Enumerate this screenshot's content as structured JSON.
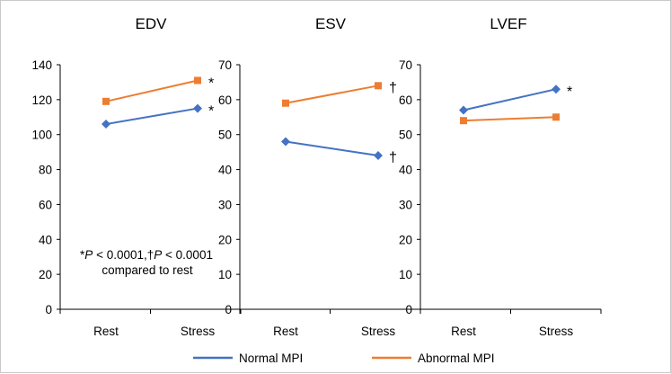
{
  "chart_data": [
    {
      "type": "line",
      "title": "EDV",
      "categories": [
        "Rest",
        "Stress"
      ],
      "ylim": [
        0,
        140
      ],
      "yticks": [
        0,
        20,
        40,
        60,
        80,
        100,
        120,
        140
      ],
      "series": [
        {
          "name": "Normal MPI",
          "values": [
            106,
            115
          ],
          "color": "#4472C4",
          "marker": "diamond"
        },
        {
          "name": "Abnormal MPI",
          "values": [
            119,
            131
          ],
          "color": "#ED7D31",
          "marker": "square"
        }
      ],
      "annotations": [
        {
          "series": "Abnormal MPI",
          "category": "Stress",
          "text": "*"
        },
        {
          "series": "Normal MPI",
          "category": "Stress",
          "text": "*"
        }
      ],
      "note": {
        "prefix": "*",
        "p1": "P",
        "mid": " < 0.0001,",
        "dagger": "†",
        "p2": "P",
        "end": " < 0.0001",
        "line2": "compared to rest"
      }
    },
    {
      "type": "line",
      "title": "ESV",
      "categories": [
        "Rest",
        "Stress"
      ],
      "ylim": [
        0,
        70
      ],
      "yticks": [
        0,
        10,
        20,
        30,
        40,
        50,
        60,
        70
      ],
      "series": [
        {
          "name": "Normal MPI",
          "values": [
            48,
            44
          ],
          "color": "#4472C4",
          "marker": "diamond"
        },
        {
          "name": "Abnormal MPI",
          "values": [
            59,
            64
          ],
          "color": "#ED7D31",
          "marker": "square"
        }
      ],
      "annotations": [
        {
          "series": "Abnormal MPI",
          "category": "Stress",
          "text": "†"
        },
        {
          "series": "Normal MPI",
          "category": "Stress",
          "text": "†"
        }
      ]
    },
    {
      "type": "line",
      "title": "LVEF",
      "categories": [
        "Rest",
        "Stress"
      ],
      "ylim": [
        0,
        70
      ],
      "yticks": [
        0,
        10,
        20,
        30,
        40,
        50,
        60,
        70
      ],
      "series": [
        {
          "name": "Normal MPI",
          "values": [
            57,
            63
          ],
          "color": "#4472C4",
          "marker": "diamond"
        },
        {
          "name": "Abnormal MPI",
          "values": [
            54,
            55
          ],
          "color": "#ED7D31",
          "marker": "square"
        }
      ],
      "annotations": [
        {
          "series": "Normal MPI",
          "category": "Stress",
          "text": "*"
        }
      ]
    }
  ],
  "legend": {
    "placement": "bottom-center",
    "items": [
      {
        "label": "Normal MPI",
        "color": "#4472C4"
      },
      {
        "label": "Abnormal MPI",
        "color": "#ED7D31"
      }
    ]
  }
}
